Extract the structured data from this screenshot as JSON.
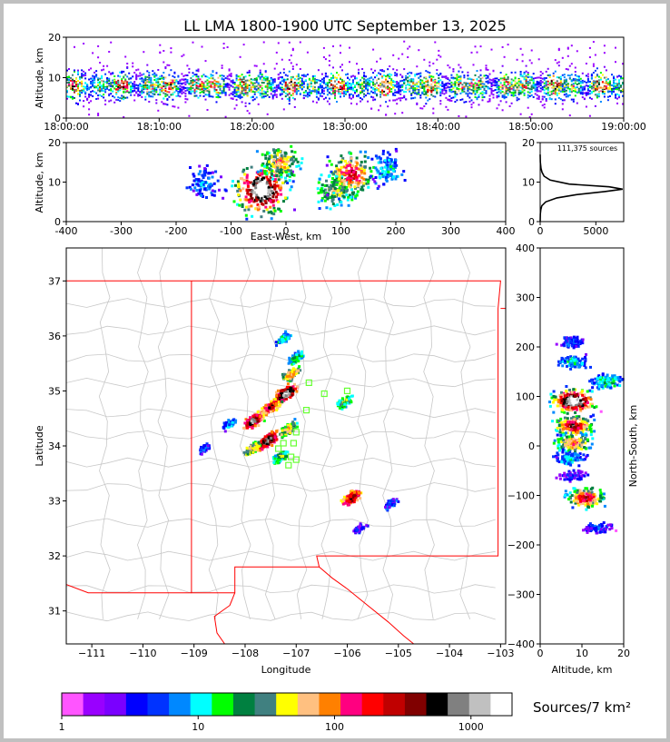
{
  "chart_data": [
    {
      "panel": "altitude-time",
      "type": "heatmap",
      "title": "LL LMA 1800-1900 UTC September 13, 2025",
      "ylabel": "Altitude, km",
      "xlim": [
        "18:00:00",
        "19:00:00"
      ],
      "ylim": [
        0,
        20
      ],
      "yticks": [
        "0",
        "10",
        "20"
      ],
      "xticks": [
        "18:00:00",
        "18:10:00",
        "18:20:00",
        "18:30:00",
        "18:40:00",
        "18:50:00",
        "19:00:00"
      ],
      "altitude_profile": {
        "center_km": 8,
        "spread_km": 3,
        "max_km": 19
      }
    },
    {
      "panel": "east-west-altitude",
      "type": "heatmap",
      "xlabel": "East-West, km",
      "ylabel": "Altitude, km",
      "xlim": [
        -400,
        400
      ],
      "ylim": [
        0,
        20
      ],
      "xticks": [
        "-400",
        "-300",
        "-200",
        "-100",
        "0",
        "100",
        "200",
        "300",
        "400"
      ],
      "yticks": [
        "0",
        "10",
        "20"
      ],
      "clusters": [
        {
          "x_km": -150,
          "alt_km": 10,
          "intensity": 0.25
        },
        {
          "x_km": -45,
          "alt_km": 8,
          "intensity": 1.0
        },
        {
          "x_km": -10,
          "alt_km": 15,
          "intensity": 0.55
        },
        {
          "x_km": 90,
          "alt_km": 8,
          "intensity": 0.5
        },
        {
          "x_km": 120,
          "alt_km": 12,
          "intensity": 0.7
        },
        {
          "x_km": 185,
          "alt_km": 13,
          "intensity": 0.3
        }
      ]
    },
    {
      "panel": "altitude-histogram",
      "type": "line",
      "annotation": "111,375 sources",
      "xlim": [
        0,
        7500
      ],
      "ylim": [
        0,
        20
      ],
      "xticks": [
        "0",
        "5000"
      ],
      "yticks": [
        "0",
        "10",
        "20"
      ],
      "x": [
        0,
        20,
        60,
        150,
        500,
        1500,
        3200,
        5800,
        7400,
        6200,
        2600,
        900,
        350,
        160,
        70,
        20,
        0
      ],
      "y": [
        0,
        2,
        3,
        4,
        5,
        6,
        6.8,
        7.6,
        8.2,
        8.8,
        9.5,
        10.5,
        11.5,
        12.5,
        13.5,
        15,
        17
      ]
    },
    {
      "panel": "plan-view",
      "type": "heatmap",
      "xlabel": "Longitude",
      "ylabel": "Latitude",
      "xlim": [
        -111.5,
        -102.9
      ],
      "ylim": [
        30.4,
        37.6
      ],
      "xticks": [
        "−111",
        "−110",
        "−109",
        "−108",
        "−107",
        "−106",
        "−105",
        "−104",
        "−103"
      ],
      "yticks": [
        "31",
        "32",
        "33",
        "34",
        "35",
        "36",
        "37"
      ],
      "storm_cells": [
        {
          "lon": -107.25,
          "lat": 35.95,
          "intensity": 0.3
        },
        {
          "lon": -107.0,
          "lat": 35.6,
          "intensity": 0.35
        },
        {
          "lon": -107.1,
          "lat": 35.3,
          "intensity": 0.55
        },
        {
          "lon": -107.2,
          "lat": 34.95,
          "intensity": 0.9
        },
        {
          "lon": -107.5,
          "lat": 34.7,
          "intensity": 0.7
        },
        {
          "lon": -107.85,
          "lat": 34.45,
          "intensity": 0.8
        },
        {
          "lon": -107.15,
          "lat": 34.3,
          "intensity": 0.5
        },
        {
          "lon": -107.55,
          "lat": 34.1,
          "intensity": 0.85
        },
        {
          "lon": -107.85,
          "lat": 33.95,
          "intensity": 0.5
        },
        {
          "lon": -107.3,
          "lat": 33.8,
          "intensity": 0.4
        },
        {
          "lon": -108.3,
          "lat": 34.4,
          "intensity": 0.25
        },
        {
          "lon": -108.8,
          "lat": 33.95,
          "intensity": 0.2
        },
        {
          "lon": -106.05,
          "lat": 34.8,
          "intensity": 0.4
        },
        {
          "lon": -105.9,
          "lat": 33.05,
          "intensity": 0.75
        },
        {
          "lon": -105.15,
          "lat": 32.95,
          "intensity": 0.2
        },
        {
          "lon": -105.75,
          "lat": 32.5,
          "intensity": 0.15
        }
      ],
      "stations": [
        {
          "lon": -106.75,
          "lat": 35.15
        },
        {
          "lon": -106.45,
          "lat": 34.95
        },
        {
          "lon": -106.0,
          "lat": 35.0
        },
        {
          "lon": -106.8,
          "lat": 34.65
        },
        {
          "lon": -107.0,
          "lat": 34.25
        },
        {
          "lon": -107.25,
          "lat": 34.05
        },
        {
          "lon": -107.05,
          "lat": 34.05
        },
        {
          "lon": -107.35,
          "lat": 33.95
        },
        {
          "lon": -107.1,
          "lat": 33.8
        },
        {
          "lon": -107.0,
          "lat": 33.75
        },
        {
          "lon": -107.15,
          "lat": 33.65
        }
      ]
    },
    {
      "panel": "north-south-altitude",
      "type": "heatmap",
      "xlabel": "Altitude, km",
      "ylabel": "North-South, km",
      "xlim": [
        0,
        20
      ],
      "ylim": [
        -400,
        400
      ],
      "xticks": [
        "0",
        "10",
        "20"
      ],
      "yticks": [
        "−400",
        "−300",
        "−200",
        "−100",
        "0",
        "100",
        "200",
        "300",
        "400"
      ],
      "clusters": [
        {
          "alt_km": 8,
          "y_km": 210,
          "intensity": 0.2
        },
        {
          "alt_km": 8,
          "y_km": 170,
          "intensity": 0.3
        },
        {
          "alt_km": 16,
          "y_km": 130,
          "intensity": 0.35
        },
        {
          "alt_km": 8,
          "y_km": 90,
          "intensity": 1.0
        },
        {
          "alt_km": 8,
          "y_km": 40,
          "intensity": 0.75
        },
        {
          "alt_km": 8,
          "y_km": 5,
          "intensity": 0.6
        },
        {
          "alt_km": 7,
          "y_km": -25,
          "intensity": 0.3
        },
        {
          "alt_km": 8,
          "y_km": -60,
          "intensity": 0.15
        },
        {
          "alt_km": 11,
          "y_km": -105,
          "intensity": 0.7
        },
        {
          "alt_km": 14,
          "y_km": -165,
          "intensity": 0.2
        }
      ]
    },
    {
      "panel": "colorbar",
      "type": "table",
      "label": "Sources/7 km²",
      "scale": "log",
      "range": [
        1,
        2000
      ],
      "tick_labels": [
        "1",
        "10",
        "100",
        "1000"
      ],
      "colors": [
        "#ff55ff",
        "#9900ff",
        "#7a00ff",
        "#0000ff",
        "#0033ff",
        "#0088ff",
        "#00ffff",
        "#00ff00",
        "#008040",
        "#408080",
        "#ffff00",
        "#ffc080",
        "#ff8000",
        "#ff0080",
        "#ff0000",
        "#c00000",
        "#800000",
        "#000000",
        "#808080",
        "#c0c0c0",
        "#ffffff"
      ]
    }
  ]
}
